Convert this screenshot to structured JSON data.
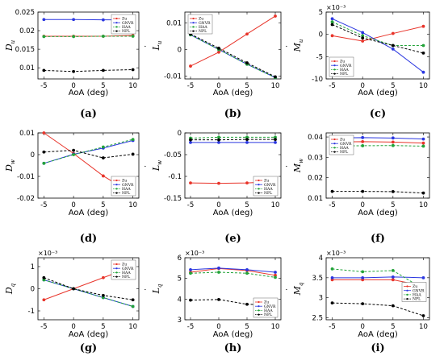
{
  "colors": {
    "Zu": "#e8342a",
    "GNVR": "#2a36e0",
    "HAA": "#22a339",
    "NPL": "#000000"
  },
  "chart_data": [
    {
      "type": "line",
      "panel_label": "(a)",
      "ylabel_main": "D",
      "ylabel_sub": "u",
      "ylabel_mark": "˙",
      "xlabel": "AoA (deg)",
      "x": [
        -5,
        0,
        5,
        10
      ],
      "xticks": [
        "-5",
        "0",
        "5",
        "10"
      ],
      "ylim": [
        0.007,
        0.025
      ],
      "yticks": [
        "0.01",
        "0.015",
        "0.02",
        "0.025"
      ],
      "ytick_values": [
        0.01,
        0.015,
        0.02,
        0.025
      ],
      "scale_label": "",
      "legend": "top-right",
      "series": [
        {
          "name": "Zu",
          "values": [
            0.0185,
            0.0185,
            0.0185,
            0.0187
          ]
        },
        {
          "name": "GNVR",
          "values": [
            0.023,
            0.023,
            0.0229,
            0.0229
          ]
        },
        {
          "name": "HAA",
          "values": [
            0.0184,
            0.0184,
            0.0185,
            0.0185
          ]
        },
        {
          "name": "NPL",
          "values": [
            0.0093,
            0.009,
            0.0093,
            0.0095
          ]
        }
      ]
    },
    {
      "type": "line",
      "panel_label": "(b)",
      "ylabel_main": "L",
      "ylabel_sub": "u",
      "ylabel_mark": "˙",
      "xlabel": "AoA (deg)",
      "x": [
        -5,
        0,
        5,
        10
      ],
      "xticks": [
        "-5",
        "0",
        "5",
        "10"
      ],
      "ylim": [
        -0.011,
        0.014
      ],
      "yticks": [
        "-0.01",
        "0",
        "0.01"
      ],
      "ytick_values": [
        -0.01,
        0,
        0.01
      ],
      "scale_label": "",
      "legend": "top-left",
      "series": [
        {
          "name": "Zu",
          "values": [
            -0.0062,
            -0.001,
            0.0058,
            0.0125
          ]
        },
        {
          "name": "GNVR",
          "values": [
            0.0055,
            0,
            -0.0055,
            -0.0105
          ]
        },
        {
          "name": "HAA",
          "values": [
            0.0055,
            0,
            -0.0055,
            -0.0105
          ]
        },
        {
          "name": "NPL",
          "values": [
            0.0058,
            0.0005,
            -0.005,
            -0.0102
          ]
        }
      ]
    },
    {
      "type": "line",
      "panel_label": "(c)",
      "ylabel_main": "M",
      "ylabel_sub": "u",
      "ylabel_mark": "˙",
      "xlabel": "AoA (deg)",
      "x": [
        -5,
        0,
        5,
        10
      ],
      "xticks": [
        "-5",
        "0",
        "5",
        "10"
      ],
      "ylim": [
        -10,
        5
      ],
      "yticks": [
        "-10",
        "-5",
        "0",
        "5"
      ],
      "ytick_values": [
        -10,
        -5,
        0,
        5
      ],
      "scale_label": "×10⁻³",
      "legend": "bottom-left",
      "series": [
        {
          "name": "Zu",
          "values": [
            -0.3,
            -1.5,
            0.2,
            1.8
          ]
        },
        {
          "name": "GNVR",
          "values": [
            3.5,
            0.4,
            -3.3,
            -8.5
          ]
        },
        {
          "name": "HAA",
          "values": [
            2.8,
            -0.3,
            -2.5,
            -2.5
          ]
        },
        {
          "name": "NPL",
          "values": [
            2.2,
            -0.8,
            -2.5,
            -4.2
          ]
        }
      ]
    },
    {
      "type": "line",
      "panel_label": "(d)",
      "ylabel_main": "D",
      "ylabel_sub": "w",
      "ylabel_mark": "˙",
      "xlabel": "AoA (deg)",
      "x": [
        -5,
        0,
        5,
        10
      ],
      "xticks": [
        "-5",
        "0",
        "5",
        "10"
      ],
      "ylim": [
        -0.02,
        0.01
      ],
      "yticks": [
        "-0.02",
        "-0.01",
        "0",
        "0.01"
      ],
      "ytick_values": [
        -0.02,
        -0.01,
        0,
        0.01
      ],
      "scale_label": "",
      "legend": "bottom-right",
      "series": [
        {
          "name": "Zu",
          "values": [
            0.01,
            0.0005,
            -0.0098,
            -0.018
          ]
        },
        {
          "name": "GNVR",
          "values": [
            -0.004,
            0.0002,
            0.003,
            0.0065
          ]
        },
        {
          "name": "HAA",
          "values": [
            -0.004,
            0,
            0.0035,
            0.007
          ]
        },
        {
          "name": "NPL",
          "values": [
            0.0012,
            0.002,
            -0.0015,
            0.0002
          ]
        }
      ]
    },
    {
      "type": "line",
      "panel_label": "(e)",
      "ylabel_main": "L",
      "ylabel_sub": "w",
      "ylabel_mark": "˙",
      "xlabel": "AoA (deg)",
      "x": [
        -5,
        0,
        5,
        10
      ],
      "xticks": [
        "-5",
        "0",
        "5",
        "10"
      ],
      "ylim": [
        -0.15,
        0
      ],
      "yticks": [
        "-0.15",
        "-0.1",
        "-0.05",
        "0"
      ],
      "ytick_values": [
        -0.15,
        -0.1,
        -0.05,
        0
      ],
      "scale_label": "",
      "legend": "bottom-right",
      "series": [
        {
          "name": "Zu",
          "values": [
            -0.115,
            -0.116,
            -0.115,
            -0.112
          ]
        },
        {
          "name": "GNVR",
          "values": [
            -0.022,
            -0.022,
            -0.022,
            -0.022
          ]
        },
        {
          "name": "HAA",
          "values": [
            -0.012,
            -0.01,
            -0.01,
            -0.01
          ]
        },
        {
          "name": "NPL",
          "values": [
            -0.016,
            -0.016,
            -0.015,
            -0.015
          ]
        }
      ]
    },
    {
      "type": "line",
      "panel_label": "(f)",
      "ylabel_main": "M",
      "ylabel_sub": "w",
      "ylabel_mark": "˙",
      "xlabel": "AoA (deg)",
      "x": [
        -5,
        0,
        5,
        10
      ],
      "xticks": [
        "-5",
        "0",
        "5",
        "10"
      ],
      "ylim": [
        0.01,
        0.042
      ],
      "yticks": [
        "0.01",
        "0.02",
        "0.03",
        "0.04"
      ],
      "ytick_values": [
        0.01,
        0.02,
        0.03,
        0.04
      ],
      "scale_label": "",
      "legend": "top-left",
      "series": [
        {
          "name": "Zu",
          "values": [
            0.0375,
            0.0377,
            0.0375,
            0.037
          ]
        },
        {
          "name": "GNVR",
          "values": [
            0.0395,
            0.0397,
            0.0395,
            0.039
          ]
        },
        {
          "name": "HAA",
          "values": [
            0.0357,
            0.0357,
            0.0358,
            0.0355
          ]
        },
        {
          "name": "NPL",
          "values": [
            0.0133,
            0.0133,
            0.0132,
            0.0125
          ]
        }
      ]
    },
    {
      "type": "line",
      "panel_label": "(g)",
      "ylabel_main": "D",
      "ylabel_sub": "q",
      "ylabel_mark": "˙",
      "xlabel": "AoA (deg)",
      "x": [
        -5,
        0,
        5,
        10
      ],
      "xticks": [
        "-5",
        "0",
        "5",
        "10"
      ],
      "ylim": [
        -1.4,
        1.4
      ],
      "yticks": [
        "-1",
        "0",
        "1"
      ],
      "ytick_values": [
        -1,
        0,
        1
      ],
      "scale_label": "×10⁻³",
      "legend": "top-right",
      "series": [
        {
          "name": "Zu",
          "values": [
            -0.5,
            0,
            0.5,
            1.0
          ]
        },
        {
          "name": "GNVR",
          "values": [
            0.4,
            0,
            -0.4,
            -0.8
          ]
        },
        {
          "name": "HAA",
          "values": [
            0.4,
            0,
            -0.4,
            -0.8
          ]
        },
        {
          "name": "NPL",
          "values": [
            0.5,
            0,
            -0.3,
            -0.5
          ]
        }
      ]
    },
    {
      "type": "line",
      "panel_label": "(h)",
      "ylabel_main": "L",
      "ylabel_sub": "q",
      "ylabel_mark": "˙",
      "xlabel": "AoA (deg)",
      "x": [
        -5,
        0,
        5,
        10
      ],
      "xticks": [
        "-5",
        "0",
        "5",
        "10"
      ],
      "ylim": [
        3,
        6
      ],
      "yticks": [
        "3",
        "4",
        "5",
        "6"
      ],
      "ytick_values": [
        3,
        4,
        5,
        6
      ],
      "scale_label": "×10⁻³",
      "legend": "bottom-right",
      "series": [
        {
          "name": "Zu",
          "values": [
            5.3,
            5.48,
            5.38,
            5.15
          ]
        },
        {
          "name": "GNVR",
          "values": [
            5.42,
            5.5,
            5.42,
            5.3
          ]
        },
        {
          "name": "HAA",
          "values": [
            5.25,
            5.3,
            5.25,
            5.05
          ]
        },
        {
          "name": "NPL",
          "values": [
            3.95,
            3.98,
            3.75,
            3.7
          ]
        }
      ]
    },
    {
      "type": "line",
      "panel_label": "(i)",
      "ylabel_main": "M",
      "ylabel_sub": "q",
      "ylabel_mark": "˙",
      "xlabel": "AoA (deg)",
      "x": [
        -5,
        0,
        5,
        10
      ],
      "xticks": [
        "-5",
        "0",
        "5",
        "10"
      ],
      "ylim": [
        2.45,
        4
      ],
      "yticks": [
        "2.5",
        "3",
        "3.5",
        "4"
      ],
      "ytick_values": [
        2.5,
        3,
        3.5,
        4
      ],
      "scale_label": "×10⁻³",
      "legend": "right",
      "series": [
        {
          "name": "Zu",
          "values": [
            3.45,
            3.45,
            3.45,
            3.3
          ]
        },
        {
          "name": "GNVR",
          "values": [
            3.5,
            3.5,
            3.52,
            3.5
          ]
        },
        {
          "name": "HAA",
          "values": [
            3.72,
            3.65,
            3.68,
            3.22
          ]
        },
        {
          "name": "NPL",
          "values": [
            2.87,
            2.85,
            2.8,
            2.55
          ]
        }
      ]
    }
  ]
}
